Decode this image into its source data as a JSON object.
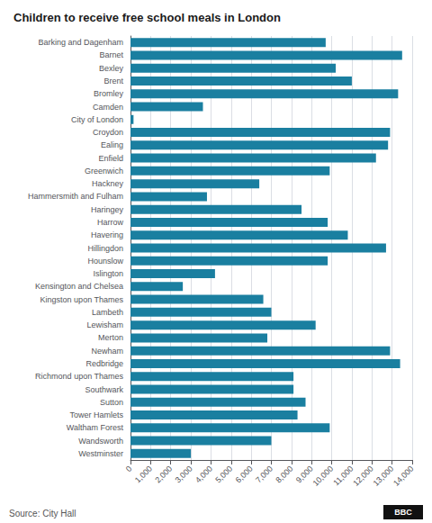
{
  "chart_data": {
    "type": "bar",
    "orientation": "horizontal",
    "title": "Children to receive free school meals in London",
    "annotations": [
      "Source: City Hall",
      "BBC"
    ],
    "categories": [
      "Barking and Dagenham",
      "Barnet",
      "Bexley",
      "Brent",
      "Bromley",
      "Camden",
      "City of London",
      "Croydon",
      "Ealing",
      "Enfield",
      "Greenwich",
      "Hackney",
      "Hammersmith and Fulham",
      "Haringey",
      "Harrow",
      "Havering",
      "Hillingdon",
      "Hounslow",
      "Islington",
      "Kensington and Chelsea",
      "Kingston upon Thames",
      "Lambeth",
      "Lewisham",
      "Merton",
      "Newham",
      "Redbridge",
      "Richmond upon Thames",
      "Southwark",
      "Sutton",
      "Tower Hamlets",
      "Waltham Forest",
      "Wandsworth",
      "Westminster"
    ],
    "values": [
      9700,
      13500,
      10200,
      11000,
      13300,
      3600,
      150,
      12900,
      12800,
      12200,
      9900,
      6400,
      3800,
      8500,
      9800,
      10800,
      12700,
      9800,
      4200,
      2600,
      6600,
      7000,
      9200,
      6800,
      12900,
      13400,
      8100,
      8100,
      8700,
      8300,
      9900,
      7000,
      3000
    ],
    "color": "#1a7fa0",
    "xlim": [
      0,
      14000
    ],
    "xticks": [
      0,
      {
        "value": 1000,
        "label": "1,000"
      },
      {
        "value": 2000,
        "label": "2,000"
      },
      {
        "value": 3000,
        "label": "3,000"
      },
      {
        "value": 4000,
        "label": "4,000"
      },
      {
        "value": 5000,
        "label": "5,000"
      },
      {
        "value": 6000,
        "label": "6,000"
      },
      {
        "value": 7000,
        "label": "7,000"
      },
      {
        "value": 8000,
        "label": "8,000"
      },
      {
        "value": 9000,
        "label": "9,000"
      },
      {
        "value": 10000,
        "label": "10,000"
      },
      {
        "value": 11000,
        "label": "11,000"
      },
      {
        "value": 12000,
        "label": "12,000"
      },
      {
        "value": 13000,
        "label": "13,000"
      },
      {
        "value": 14000,
        "label": "14,000"
      }
    ],
    "grid": true
  }
}
